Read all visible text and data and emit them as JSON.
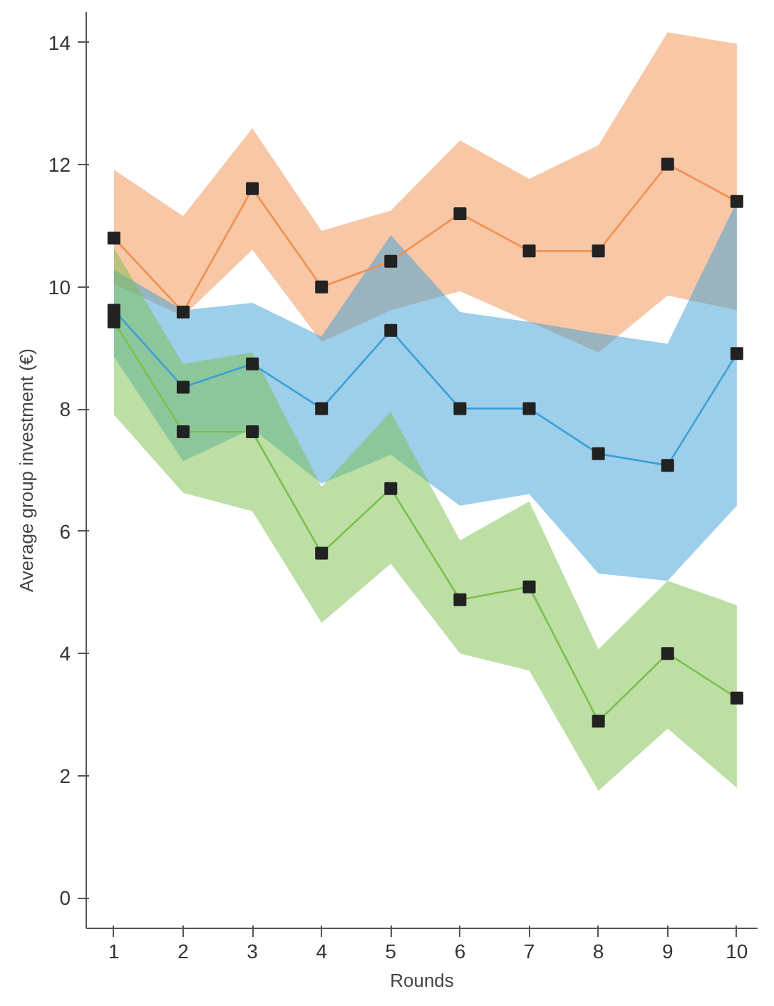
{
  "chart_data": {
    "type": "line",
    "xlabel": "Rounds",
    "ylabel": "Average group investment (€)",
    "x": [
      1,
      2,
      3,
      4,
      5,
      6,
      7,
      8,
      9,
      10
    ],
    "xlim": [
      0.6,
      10.3
    ],
    "ylim": [
      -0.5,
      14.5
    ],
    "xticks": [
      1,
      2,
      3,
      4,
      5,
      6,
      7,
      8,
      9,
      10
    ],
    "yticks": [
      0,
      2,
      4,
      6,
      8,
      10,
      12,
      14
    ],
    "grid": false,
    "marker": "square",
    "line_style": "solid",
    "series": [
      {
        "color": "#f0904e",
        "values": [
          10.8,
          9.59,
          11.61,
          10.0,
          10.42,
          11.2,
          10.59,
          10.59,
          12.01,
          11.4
        ],
        "upper": [
          11.92,
          11.16,
          12.6,
          10.92,
          11.25,
          12.4,
          11.77,
          12.32,
          14.17,
          13.98
        ],
        "lower": [
          10.05,
          9.52,
          10.61,
          9.1,
          9.62,
          9.93,
          9.43,
          8.93,
          9.86,
          9.62
        ]
      },
      {
        "color": "#3b9fd8",
        "values": [
          9.62,
          8.36,
          8.74,
          8.01,
          9.29,
          8.01,
          8.01,
          7.27,
          7.08,
          8.91
        ],
        "upper": [
          10.28,
          9.62,
          9.74,
          9.19,
          10.85,
          9.59,
          9.43,
          9.24,
          9.07,
          11.4
        ],
        "lower": [
          8.86,
          7.15,
          7.68,
          6.78,
          7.25,
          6.42,
          6.61,
          5.31,
          5.19,
          6.42
        ]
      },
      {
        "color": "#7cbf4b",
        "values": [
          9.43,
          7.63,
          7.63,
          5.64,
          6.7,
          4.88,
          5.09,
          2.89,
          4.0,
          3.27
        ],
        "upper": [
          10.64,
          8.74,
          8.93,
          6.73,
          7.96,
          5.85,
          6.49,
          4.07,
          5.19,
          4.79
        ],
        "lower": [
          7.91,
          6.63,
          6.33,
          4.5,
          5.47,
          4.0,
          3.72,
          1.75,
          2.77,
          1.8
        ]
      }
    ]
  }
}
